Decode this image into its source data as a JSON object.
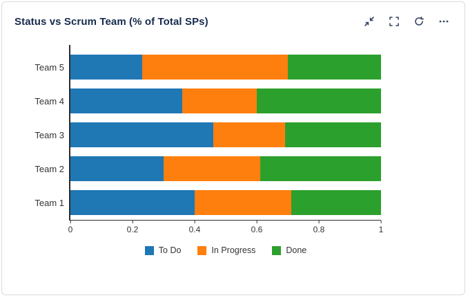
{
  "card": {
    "title": "Status vs Scrum Team (% of Total SPs)"
  },
  "toolbar": {
    "buttons": [
      {
        "name": "collapse",
        "icon": "collapse-arrows-icon"
      },
      {
        "name": "fullscreen",
        "icon": "fullscreen-brackets-icon"
      },
      {
        "name": "refresh",
        "icon": "refresh-icon"
      },
      {
        "name": "more-options",
        "icon": "ellipsis-icon"
      }
    ]
  },
  "colors": {
    "title": "#172b4d",
    "icons": "#344563",
    "axis": "#2b2b2b",
    "card_border": "#d7dbe2",
    "to_do": "#1f77b4",
    "in_progress": "#ff7f0e",
    "done": "#2ca02c"
  },
  "chart_data": {
    "type": "bar",
    "orientation": "horizontal",
    "stacked": true,
    "title": "Status vs Scrum Team (% of Total SPs)",
    "categories": [
      "Team 5",
      "Team 4",
      "Team 3",
      "Team 2",
      "Team 1"
    ],
    "categories_order": "top-to-bottom",
    "series": [
      {
        "name": "To Do",
        "color": "#1f77b4",
        "values": [
          0.23,
          0.36,
          0.46,
          0.3,
          0.4
        ]
      },
      {
        "name": "In Progress",
        "color": "#ff7f0e",
        "values": [
          0.47,
          0.24,
          0.23,
          0.31,
          0.31
        ]
      },
      {
        "name": "Done",
        "color": "#2ca02c",
        "values": [
          0.3,
          0.4,
          0.31,
          0.39,
          0.29
        ]
      }
    ],
    "xlim": [
      0,
      1
    ],
    "xticks": [
      0,
      0.2,
      0.4,
      0.6,
      0.8,
      1
    ],
    "xlabel": "",
    "ylabel": "",
    "grid": false,
    "legend": [
      "To Do",
      "In Progress",
      "Done"
    ],
    "legend_position": "bottom"
  }
}
